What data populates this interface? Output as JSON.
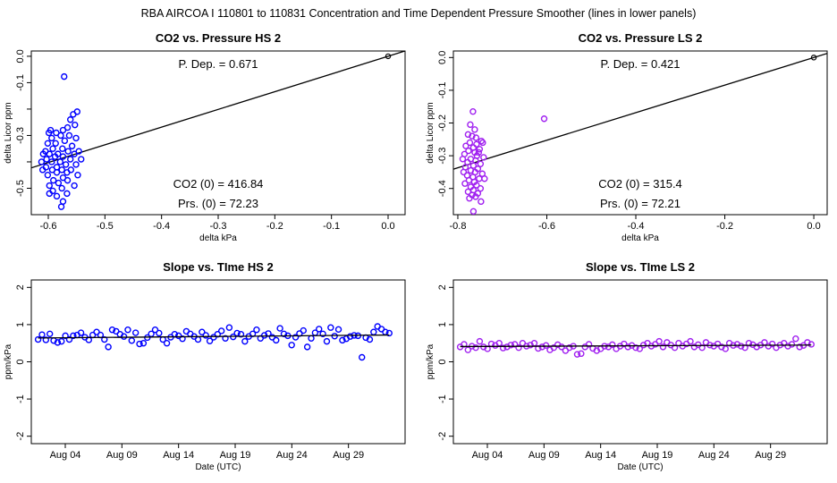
{
  "suptitle": "RBA   AIRCOA I   110801 to 110831   Concentration and Time Dependent Pressure Smoother (lines in lower panels)",
  "colors": {
    "hs": "#0000ff",
    "ls": "#a020f0",
    "fit": "#000000",
    "frame": "#000000"
  },
  "chart_data": [
    {
      "id": "hs-pressure",
      "type": "scatter",
      "title": "CO2 vs. Pressure HS 2",
      "xlabel": "delta kPa",
      "ylabel": "delta Licor ppm",
      "xlim": [
        -0.63,
        0.03
      ],
      "ylim": [
        -0.6,
        0.02
      ],
      "xticks": [
        -0.6,
        -0.5,
        -0.4,
        -0.3,
        -0.2,
        -0.1,
        0.0
      ],
      "xticklabels": [
        "-0.6",
        "-0.5",
        "-0.4",
        "-0.3",
        "-0.2",
        "-0.1",
        "0.0"
      ],
      "yticks": [
        0.0,
        -0.1,
        -0.2,
        -0.3,
        -0.4,
        -0.5
      ],
      "yticklabels": [
        "0.0",
        "-0.1",
        "",
        "-0.3",
        "",
        "-0.5"
      ],
      "annotations": {
        "pdep": "P. Dep. =  0.671",
        "co2zero": "CO2 (0) =  416.84",
        "prszero": "Prs. (0) =  72.23"
      },
      "fit_line": {
        "slope": 0.671,
        "intercept": 0.0
      },
      "origin_point": [
        0.0,
        0.0
      ],
      "color": "hs",
      "points": [
        [
          -0.572,
          -0.077
        ],
        [
          -0.549,
          -0.21
        ],
        [
          -0.556,
          -0.22
        ],
        [
          -0.561,
          -0.24
        ],
        [
          -0.553,
          -0.26
        ],
        [
          -0.566,
          -0.27
        ],
        [
          -0.574,
          -0.28
        ],
        [
          -0.586,
          -0.29
        ],
        [
          -0.599,
          -0.29
        ],
        [
          -0.563,
          -0.3
        ],
        [
          -0.578,
          -0.3
        ],
        [
          -0.594,
          -0.31
        ],
        [
          -0.551,
          -0.31
        ],
        [
          -0.571,
          -0.32
        ],
        [
          -0.587,
          -0.33
        ],
        [
          -0.601,
          -0.33
        ],
        [
          -0.558,
          -0.34
        ],
        [
          -0.592,
          -0.35
        ],
        [
          -0.575,
          -0.35
        ],
        [
          -0.605,
          -0.36
        ],
        [
          -0.546,
          -0.36
        ],
        [
          -0.565,
          -0.36
        ],
        [
          -0.583,
          -0.37
        ],
        [
          -0.598,
          -0.37
        ],
        [
          -0.554,
          -0.37
        ],
        [
          -0.574,
          -0.38
        ],
        [
          -0.588,
          -0.38
        ],
        [
          -0.603,
          -0.39
        ],
        [
          -0.561,
          -0.39
        ],
        [
          -0.542,
          -0.39
        ],
        [
          -0.579,
          -0.4
        ],
        [
          -0.594,
          -0.4
        ],
        [
          -0.551,
          -0.41
        ],
        [
          -0.569,
          -0.41
        ],
        [
          -0.585,
          -0.42
        ],
        [
          -0.604,
          -0.42
        ],
        [
          -0.56,
          -0.43
        ],
        [
          -0.576,
          -0.43
        ],
        [
          -0.593,
          -0.43
        ],
        [
          -0.567,
          -0.44
        ],
        [
          -0.585,
          -0.44
        ],
        [
          -0.601,
          -0.45
        ],
        [
          -0.548,
          -0.45
        ],
        [
          -0.574,
          -0.46
        ],
        [
          -0.591,
          -0.47
        ],
        [
          -0.566,
          -0.47
        ],
        [
          -0.582,
          -0.48
        ],
        [
          -0.598,
          -0.49
        ],
        [
          -0.554,
          -0.49
        ],
        [
          -0.576,
          -0.5
        ],
        [
          -0.592,
          -0.51
        ],
        [
          -0.567,
          -0.52
        ],
        [
          -0.585,
          -0.53
        ],
        [
          -0.598,
          -0.52
        ],
        [
          -0.574,
          -0.55
        ],
        [
          -0.577,
          -0.57
        ],
        [
          -0.609,
          -0.37
        ],
        [
          -0.612,
          -0.4
        ],
        [
          -0.61,
          -0.43
        ],
        [
          -0.596,
          -0.28
        ]
      ]
    },
    {
      "id": "ls-pressure",
      "type": "scatter",
      "title": "CO2 vs. Pressure LS 2",
      "xlabel": "delta kPa",
      "ylabel": "delta Licor ppm",
      "xlim": [
        -0.81,
        0.03
      ],
      "ylim": [
        -0.48,
        0.02
      ],
      "xticks": [
        -0.8,
        -0.6,
        -0.4,
        -0.2,
        0.0
      ],
      "xticklabels": [
        "-0.8",
        "-0.6",
        "-0.4",
        "-0.2",
        "0.0"
      ],
      "yticks": [
        0.0,
        -0.1,
        -0.2,
        -0.3,
        -0.4
      ],
      "yticklabels": [
        "0.0",
        "-0.1",
        "-0.2",
        "-0.3",
        "-0.4"
      ],
      "annotations": {
        "pdep": "P. Dep. =  0.421",
        "co2zero": "CO2 (0) =  315.4",
        "prszero": "Prs. (0) =  72.21"
      },
      "fit_line": {
        "slope": 0.421,
        "intercept": 0.0
      },
      "origin_point": [
        0.0,
        0.0
      ],
      "color": "ls",
      "points": [
        [
          -0.606,
          -0.187
        ],
        [
          -0.766,
          -0.165
        ],
        [
          -0.772,
          -0.205
        ],
        [
          -0.762,
          -0.22
        ],
        [
          -0.777,
          -0.235
        ],
        [
          -0.759,
          -0.245
        ],
        [
          -0.747,
          -0.255
        ],
        [
          -0.773,
          -0.26
        ],
        [
          -0.758,
          -0.265
        ],
        [
          -0.782,
          -0.27
        ],
        [
          -0.765,
          -0.275
        ],
        [
          -0.751,
          -0.28
        ],
        [
          -0.776,
          -0.285
        ],
        [
          -0.762,
          -0.29
        ],
        [
          -0.785,
          -0.295
        ],
        [
          -0.757,
          -0.3
        ],
        [
          -0.742,
          -0.305
        ],
        [
          -0.771,
          -0.31
        ],
        [
          -0.76,
          -0.315
        ],
        [
          -0.778,
          -0.32
        ],
        [
          -0.749,
          -0.325
        ],
        [
          -0.765,
          -0.33
        ],
        [
          -0.783,
          -0.335
        ],
        [
          -0.755,
          -0.34
        ],
        [
          -0.771,
          -0.345
        ],
        [
          -0.761,
          -0.35
        ],
        [
          -0.745,
          -0.355
        ],
        [
          -0.779,
          -0.36
        ],
        [
          -0.766,
          -0.365
        ],
        [
          -0.752,
          -0.37
        ],
        [
          -0.775,
          -0.375
        ],
        [
          -0.763,
          -0.38
        ],
        [
          -0.784,
          -0.385
        ],
        [
          -0.758,
          -0.39
        ],
        [
          -0.771,
          -0.395
        ],
        [
          -0.749,
          -0.4
        ],
        [
          -0.765,
          -0.405
        ],
        [
          -0.777,
          -0.41
        ],
        [
          -0.755,
          -0.415
        ],
        [
          -0.768,
          -0.42
        ],
        [
          -0.76,
          -0.425
        ],
        [
          -0.774,
          -0.43
        ],
        [
          -0.748,
          -0.44
        ],
        [
          -0.765,
          -0.47
        ],
        [
          -0.744,
          -0.26
        ],
        [
          -0.789,
          -0.31
        ],
        [
          -0.787,
          -0.35
        ],
        [
          -0.74,
          -0.37
        ],
        [
          -0.753,
          -0.29
        ],
        [
          -0.768,
          -0.24
        ]
      ]
    },
    {
      "id": "hs-slope",
      "type": "scatter",
      "title": "Slope vs. TIme HS 2",
      "xlabel": "Date (UTC)",
      "ylabel": "ppm/kPa",
      "xlim": [
        0,
        33
      ],
      "ylim": [
        -2.2,
        2.2
      ],
      "xticks": [
        3,
        8,
        13,
        18,
        23,
        28
      ],
      "xticklabels": [
        "Aug 04",
        "Aug 09",
        "Aug 14",
        "Aug 19",
        "Aug 24",
        "Aug 29"
      ],
      "yticks": [
        2,
        1,
        0,
        -1,
        -2
      ],
      "yticklabels": [
        "2",
        "1",
        "0",
        "-1",
        "-2"
      ],
      "trend_line": {
        "x": [
          0,
          31.6
        ],
        "y": [
          0.64,
          0.72
        ]
      },
      "color": "hs",
      "values": [
        0.6,
        0.73,
        0.59,
        0.75,
        0.57,
        0.52,
        0.55,
        0.7,
        0.6,
        0.7,
        0.72,
        0.78,
        0.66,
        0.59,
        0.72,
        0.8,
        0.72,
        0.6,
        0.4,
        0.86,
        0.82,
        0.74,
        0.68,
        0.86,
        0.57,
        0.78,
        0.48,
        0.5,
        0.65,
        0.75,
        0.86,
        0.77,
        0.6,
        0.5,
        0.66,
        0.74,
        0.7,
        0.62,
        0.82,
        0.75,
        0.68,
        0.6,
        0.8,
        0.71,
        0.56,
        0.66,
        0.74,
        0.83,
        0.63,
        0.92,
        0.67,
        0.77,
        0.74,
        0.55,
        0.68,
        0.75,
        0.86,
        0.63,
        0.71,
        0.76,
        0.66,
        0.58,
        0.9,
        0.75,
        0.7,
        0.45,
        0.66,
        0.76,
        0.84,
        0.4,
        0.63,
        0.78,
        0.88,
        0.75,
        0.55,
        0.92,
        0.69,
        0.87,
        0.58,
        0.62,
        0.68,
        0.71,
        0.7,
        0.12,
        0.65,
        0.6,
        0.8,
        0.95,
        0.88,
        0.8,
        0.77
      ]
    },
    {
      "id": "ls-slope",
      "type": "scatter",
      "title": "Slope vs. TIme LS 2",
      "xlabel": "Date (UTC)",
      "ylabel": "ppm/kPa",
      "xlim": [
        0,
        33
      ],
      "ylim": [
        -2.2,
        2.2
      ],
      "xticks": [
        3,
        8,
        13,
        18,
        23,
        28
      ],
      "xticklabels": [
        "Aug 04",
        "Aug 09",
        "Aug 14",
        "Aug 19",
        "Aug 24",
        "Aug 29"
      ],
      "yticks": [
        2,
        1,
        0,
        -1,
        -2
      ],
      "yticklabels": [
        "2",
        "1",
        "0",
        "-1",
        "-2"
      ],
      "trend_line": {
        "x": [
          0,
          31.6
        ],
        "y": [
          0.41,
          0.45
        ]
      },
      "color": "ls",
      "values": [
        0.4,
        0.47,
        0.32,
        0.42,
        0.38,
        0.55,
        0.4,
        0.35,
        0.48,
        0.44,
        0.5,
        0.37,
        0.4,
        0.45,
        0.47,
        0.38,
        0.5,
        0.42,
        0.45,
        0.5,
        0.36,
        0.4,
        0.44,
        0.32,
        0.38,
        0.46,
        0.4,
        0.3,
        0.38,
        0.42,
        0.2,
        0.22,
        0.4,
        0.47,
        0.36,
        0.3,
        0.35,
        0.42,
        0.4,
        0.46,
        0.35,
        0.42,
        0.48,
        0.4,
        0.44,
        0.38,
        0.35,
        0.45,
        0.5,
        0.42,
        0.47,
        0.55,
        0.4,
        0.52,
        0.45,
        0.38,
        0.5,
        0.42,
        0.48,
        0.55,
        0.4,
        0.46,
        0.38,
        0.52,
        0.45,
        0.42,
        0.48,
        0.4,
        0.35,
        0.5,
        0.44,
        0.47,
        0.42,
        0.38,
        0.5,
        0.46,
        0.4,
        0.45,
        0.52,
        0.42,
        0.48,
        0.38,
        0.45,
        0.5,
        0.42,
        0.47,
        0.62,
        0.4,
        0.44,
        0.52,
        0.47
      ]
    }
  ]
}
